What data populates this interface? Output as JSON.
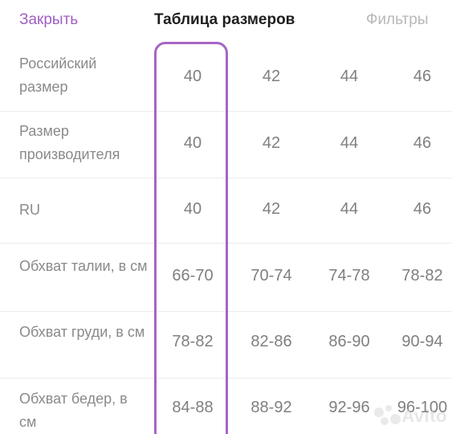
{
  "header": {
    "close_label": "Закрыть",
    "title": "Таблица размеров",
    "filters_label": "Фильтры"
  },
  "accent_color": "#a665c4",
  "selected_column_index": 0,
  "table": {
    "rows": [
      {
        "label": "Российский размер",
        "values": [
          "40",
          "42",
          "44",
          "46"
        ]
      },
      {
        "label": "Размер производителя",
        "values": [
          "40",
          "42",
          "44",
          "46"
        ]
      },
      {
        "label": "RU",
        "values": [
          "40",
          "42",
          "44",
          "46"
        ]
      },
      {
        "label": "Обхват талии, в см",
        "values": [
          "66-70",
          "70-74",
          "74-78",
          "78-82"
        ]
      },
      {
        "label": "Обхват груди, в см",
        "values": [
          "78-82",
          "82-86",
          "86-90",
          "90-94"
        ]
      },
      {
        "label": "Обхват бедер, в см",
        "values": [
          "84-88",
          "88-92",
          "92-96",
          "96-100"
        ]
      }
    ]
  },
  "watermark": {
    "icon": "avito-dots-icon",
    "text": "Avito"
  }
}
